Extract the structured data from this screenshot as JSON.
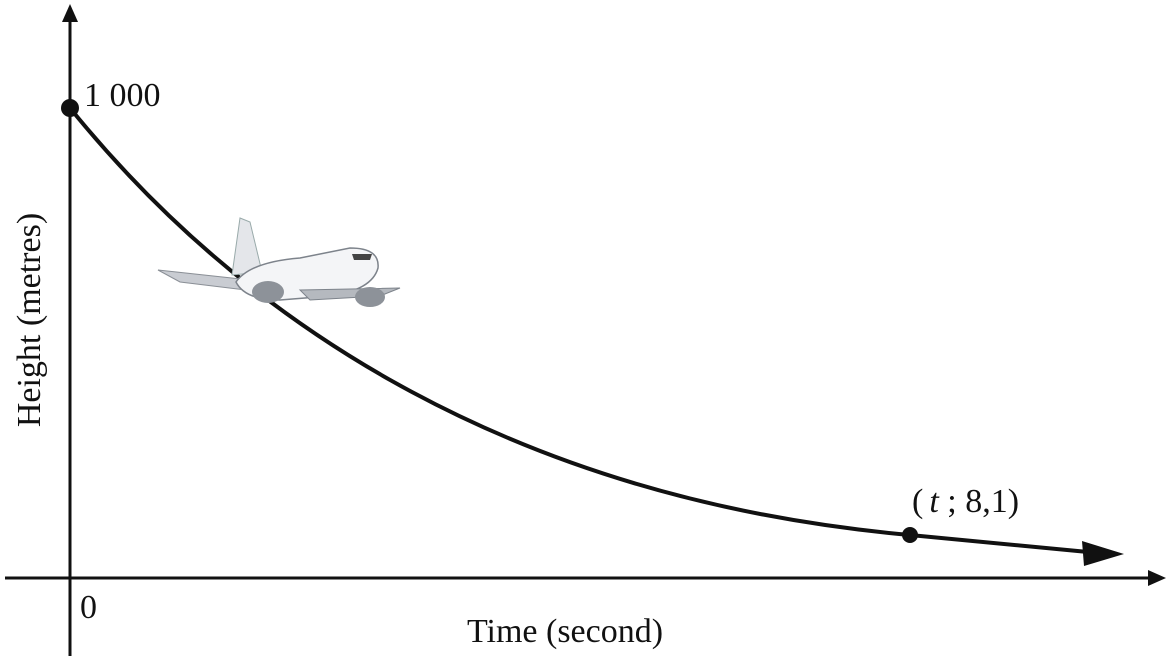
{
  "axes": {
    "y_label": "Height (metres)",
    "x_label": "Time (second)",
    "origin": "0"
  },
  "points": {
    "start": "1 000",
    "end": {
      "open": "(",
      "variable": "t",
      "rest": " ; 8,1)"
    }
  }
}
